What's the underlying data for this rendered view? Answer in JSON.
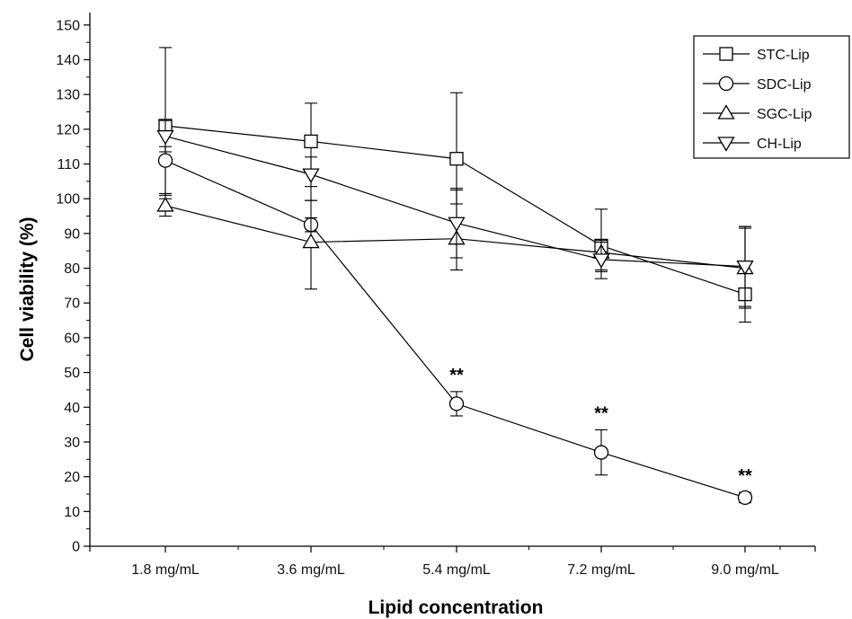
{
  "chart_data": {
    "type": "line",
    "title": "",
    "xlabel": "Lipid concentration",
    "ylabel": "Cell viability (%)",
    "categories": [
      "1.8 mg/mL",
      "3.6 mg/mL",
      "5.4 mg/mL",
      "7.2 mg/mL",
      "9.0 mg/mL"
    ],
    "ylim": [
      0,
      155
    ],
    "yticks": [
      0,
      10,
      20,
      30,
      40,
      50,
      60,
      70,
      80,
      90,
      100,
      110,
      120,
      130,
      140,
      150
    ],
    "grid": false,
    "legend_position": "top-right",
    "series": [
      {
        "name": "STC-Lip",
        "marker": "square",
        "values": [
          121,
          116.5,
          111.5,
          86.5,
          72.5
        ],
        "err_up": [
          22.5,
          11,
          19,
          10.5,
          19.5
        ],
        "err_down": [
          21,
          13,
          13,
          7,
          8
        ]
      },
      {
        "name": "SDC-Lip",
        "marker": "circle",
        "values": [
          111,
          92.5,
          41,
          27,
          14
        ],
        "err_up": [
          4,
          2,
          3.5,
          6.5,
          1.5
        ],
        "err_down": [
          10,
          2,
          3.5,
          6.5,
          1.5
        ]
      },
      {
        "name": "SGC-Lip",
        "marker": "triangle-up",
        "values": [
          98,
          87.5,
          88.5,
          84.5,
          80
        ],
        "err_up": [
          3.5,
          12,
          14,
          3,
          11.5
        ],
        "err_down": [
          3,
          13.5,
          9,
          5.5,
          11.5
        ]
      },
      {
        "name": "CH-Lip",
        "marker": "triangle-down",
        "values": [
          118,
          107,
          93,
          82.5,
          80.5
        ],
        "err_up": [
          4.5,
          5,
          10,
          5.5,
          11.5
        ],
        "err_down": [
          4.5,
          7.5,
          10,
          5.5,
          11.5
        ]
      }
    ],
    "annotations": [
      {
        "text": "**",
        "category": "5.4 mg/mL",
        "series": "SDC-Lip"
      },
      {
        "text": "**",
        "category": "7.2 mg/mL",
        "series": "SDC-Lip"
      },
      {
        "text": "**",
        "category": "9.0 mg/mL",
        "series": "SDC-Lip"
      }
    ]
  }
}
